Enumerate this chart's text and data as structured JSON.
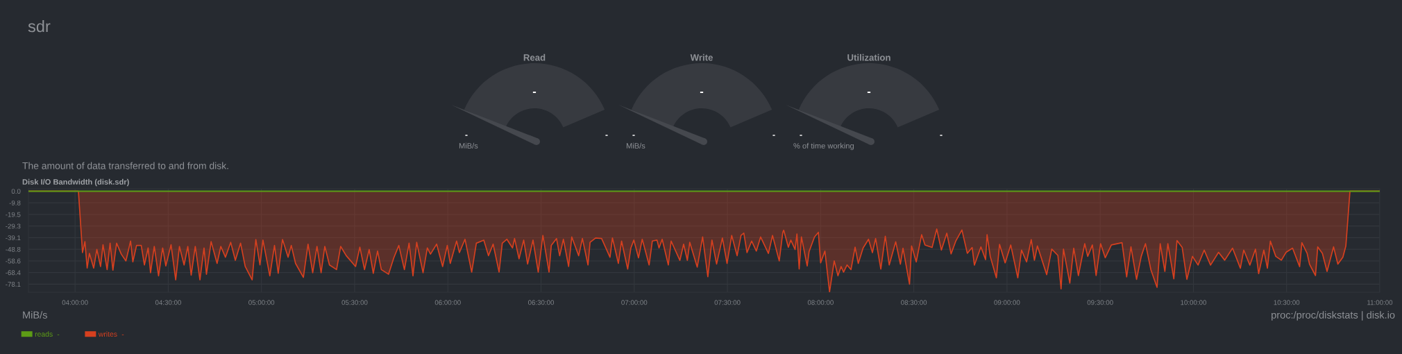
{
  "chart_data": [
    {
      "type": "other",
      "title": "sdr",
      "categories": [
        "Read",
        "Write",
        "Utilization"
      ],
      "value_labels": [
        "-",
        "-",
        "-"
      ],
      "annotations": [
        "-",
        "-",
        "MiB/s",
        "-",
        "-",
        "MiB/s",
        "-",
        "-",
        "% of time working"
      ]
    },
    {
      "type": "area",
      "title": "Disk I/O Bandwidth (disk.sdr)",
      "subtitle": "The amount of data transferred to and from disk.",
      "annotations": [
        "MiB/s",
        "proc:/proc/diskstats | disk.io",
        "-",
        "-"
      ],
      "xlim": [
        3.75,
        11.0
      ],
      "xticks": [
        {
          "value": 4,
          "label": "04:00:00"
        },
        {
          "value": 4.5,
          "label": "04:30:00"
        },
        {
          "value": 5,
          "label": "05:00:00"
        },
        {
          "value": 5.5,
          "label": "05:30:00"
        },
        {
          "value": 6,
          "label": "06:00:00"
        },
        {
          "value": 6.5,
          "label": "06:30:00"
        },
        {
          "value": 7,
          "label": "07:00:00"
        },
        {
          "value": 7.5,
          "label": "07:30:00"
        },
        {
          "value": 8,
          "label": "08:00:00"
        },
        {
          "value": 8.5,
          "label": "08:30:00"
        },
        {
          "value": 9,
          "label": "09:00:00"
        },
        {
          "value": 9.5,
          "label": "09:30:00"
        },
        {
          "value": 10,
          "label": "10:00:00"
        },
        {
          "value": 10.5,
          "label": "10:30:00"
        },
        {
          "value": 11,
          "label": "11:00:00"
        }
      ],
      "ylim": [
        -84.9,
        2.0
      ],
      "yticks": [
        {
          "value": 0,
          "label": "0.0"
        },
        {
          "value": -9.765,
          "label": "-9.8"
        },
        {
          "value": -19.53,
          "label": "-19.5"
        },
        -29.3,
        {
          "value": -39.06,
          "label": "-39.1"
        },
        {
          "value": -48.83,
          "label": "-48.8"
        },
        {
          "value": -58.59,
          "label": "-58.6"
        },
        {
          "value": -68.36,
          "label": "-68.4"
        },
        {
          "value": -78.12,
          "label": "-78.1"
        }
      ],
      "grid": true,
      "legend": "bottom left",
      "series": [
        {
          "name": "reads",
          "type": "line",
          "color": "#5d9c16",
          "x": [
            3.75,
            11.0
          ],
          "values": [
            0,
            0
          ]
        },
        {
          "name": "writes",
          "type": "area",
          "color": "#d6401f",
          "x": [
            3.75,
            4.018,
            4.04,
            4.053,
            4.065,
            4.077,
            4.1,
            4.117,
            4.137,
            4.15,
            4.172,
            4.188,
            4.203,
            4.223,
            4.248,
            4.273,
            4.298,
            4.31,
            4.33,
            4.355,
            4.372,
            4.392,
            4.405,
            4.425,
            4.448,
            4.47,
            4.487,
            4.515,
            4.54,
            4.56,
            4.585,
            4.605,
            4.623,
            4.645,
            4.67,
            4.692,
            4.705,
            4.73,
            4.762,
            4.782,
            4.807,
            4.835,
            4.86,
            4.888,
            4.913,
            4.95,
            4.97,
            4.992,
            5.008,
            5.045,
            5.07,
            5.09,
            5.113,
            5.143,
            5.16,
            5.183,
            5.225,
            5.25,
            5.275,
            5.298,
            5.32,
            5.34,
            5.365,
            5.403,
            5.425,
            5.455,
            5.505,
            5.528,
            5.553,
            5.578,
            5.6,
            5.623,
            5.643,
            5.682,
            5.71,
            5.737,
            5.767,
            5.792,
            5.813,
            5.833,
            5.867,
            5.89,
            5.907,
            5.94,
            5.972,
            5.997,
            6.013,
            6.047,
            6.062,
            6.092,
            6.128,
            6.153,
            6.193,
            6.218,
            6.243,
            6.275,
            6.292,
            6.317,
            6.347,
            6.358,
            6.382,
            6.407,
            6.428,
            6.457,
            6.485,
            6.51,
            6.543,
            6.555,
            6.583,
            6.6,
            6.62,
            6.648,
            6.665,
            6.702,
            6.722,
            6.752,
            6.763,
            6.793,
            6.825,
            6.87,
            6.883,
            6.915,
            6.932,
            6.965,
            6.982,
            6.998,
            7.023,
            7.043,
            7.08,
            7.097,
            7.122,
            7.133,
            7.15,
            7.183,
            7.198,
            7.245,
            7.265,
            7.285,
            7.298,
            7.338,
            7.367,
            7.395,
            7.417,
            7.442,
            7.473,
            7.498,
            7.523,
            7.552,
            7.573,
            7.588,
            7.605,
            7.63,
            7.655,
            7.678,
            7.72,
            7.742,
            7.778,
            7.797,
            7.802,
            7.827,
            7.84,
            7.863,
            7.873,
            7.885,
            7.897,
            7.928,
            7.938,
            7.967,
            7.988,
            8.0,
            8.023,
            8.048,
            8.073,
            8.093,
            8.11,
            8.123,
            8.142,
            8.163,
            8.185,
            8.202,
            8.228,
            8.257,
            8.278,
            8.295,
            8.323,
            8.347,
            8.368,
            8.403,
            8.428,
            8.442,
            8.477,
            8.488,
            8.513,
            8.542,
            8.56,
            8.598,
            8.623,
            8.648,
            8.677,
            8.7,
            8.725,
            8.758,
            8.787,
            8.813,
            8.825,
            8.86,
            8.885,
            8.893,
            8.91,
            8.943,
            8.96,
            8.99,
            9.02,
            9.058,
            9.078,
            9.105,
            9.13,
            9.147,
            9.163,
            9.213,
            9.24,
            9.273,
            9.29,
            9.303,
            9.337,
            9.358,
            9.383,
            9.417,
            9.433,
            9.458,
            9.478,
            9.502,
            9.527,
            9.56,
            9.617,
            9.642,
            9.665,
            9.695,
            9.72,
            9.743,
            9.772,
            9.805,
            9.822,
            9.847,
            9.863,
            9.895,
            9.912,
            9.94,
            9.965,
            9.995,
            10.025,
            10.058,
            10.092,
            10.135,
            10.168,
            10.21,
            10.252,
            10.27,
            10.303,
            10.333,
            10.35,
            10.378,
            10.397,
            10.413,
            10.442,
            10.472,
            10.497,
            10.532,
            10.57,
            10.582,
            10.61,
            10.623,
            10.655,
            10.667,
            10.692,
            10.717,
            10.752,
            10.775,
            10.802,
            10.818,
            10.84,
            11.0
          ],
          "values": [
            0,
            0,
            -51.6,
            -42.4,
            -64.6,
            -52.3,
            -64.6,
            -49,
            -63.3,
            -45,
            -65.9,
            -43.7,
            -66.4,
            -43.7,
            -52.9,
            -58.6,
            -41.9,
            -59.4,
            -45.6,
            -45.6,
            -62,
            -47.7,
            -68.5,
            -46.4,
            -71.1,
            -47.7,
            -62.8,
            -45,
            -74.5,
            -46.4,
            -62,
            -46.4,
            -70.6,
            -46.4,
            -74.5,
            -47.7,
            -69.8,
            -42.4,
            -60.7,
            -46.4,
            -55.5,
            -43,
            -58.1,
            -43.7,
            -63.3,
            -74.5,
            -40.6,
            -62,
            -41.1,
            -71.1,
            -45.6,
            -69,
            -40.6,
            -55.5,
            -45.6,
            -60.7,
            -72.4,
            -44.5,
            -68.5,
            -46.4,
            -68.5,
            -46.4,
            -62,
            -65.9,
            -46.4,
            -54.2,
            -63.3,
            -47.1,
            -65.9,
            -49,
            -69,
            -50.3,
            -65.9,
            -69.8,
            -56,
            -45.6,
            -65.9,
            -43.7,
            -71.1,
            -43,
            -68.5,
            -47.7,
            -52.9,
            -44.5,
            -63.3,
            -45.6,
            -60.7,
            -41.9,
            -51.6,
            -40.4,
            -68,
            -43.7,
            -41.1,
            -54.2,
            -44.5,
            -68,
            -43.7,
            -40.4,
            -47.7,
            -39.8,
            -56.8,
            -41.1,
            -61.2,
            -41.1,
            -68,
            -37.2,
            -68,
            -45.6,
            -39.8,
            -54.2,
            -40.4,
            -63.3,
            -38.5,
            -54.2,
            -39.8,
            -62,
            -43,
            -39.3,
            -39.8,
            -55.5,
            -39.3,
            -60.7,
            -41.9,
            -65.4,
            -47.7,
            -41.1,
            -56,
            -40.4,
            -62,
            -41.9,
            -41.1,
            -47.7,
            -40.4,
            -62,
            -41.9,
            -58.1,
            -44.5,
            -58.1,
            -43,
            -63.8,
            -38.5,
            -71.9,
            -41.1,
            -61.2,
            -39.3,
            -60.7,
            -37.2,
            -54.2,
            -37.2,
            -35.2,
            -51.6,
            -41.9,
            -50.3,
            -38.5,
            -52.3,
            -37.2,
            -58.6,
            -34.6,
            -32.8,
            -47.1,
            -41.1,
            -49,
            -35.9,
            -65.4,
            -38.5,
            -62.8,
            -50.8,
            -38.5,
            -34.6,
            -60.2,
            -50.3,
            -84.6,
            -58.6,
            -71.1,
            -63.3,
            -68,
            -62,
            -65.9,
            -47.1,
            -60.7,
            -47.7,
            -40.4,
            -51.6,
            -39.8,
            -65.4,
            -37.8,
            -62,
            -42.5,
            -61.3,
            -47.9,
            -78.1,
            -46,
            -59.4,
            -36.6,
            -45.2,
            -47.3,
            -31.8,
            -49.5,
            -35.3,
            -52.7,
            -42,
            -32.6,
            -52.2,
            -47.3,
            -62.1,
            -46.8,
            -57.5,
            -36.6,
            -54.8,
            -72.8,
            -44.7,
            -60.2,
            -45.2,
            -72.8,
            -49.5,
            -59.4,
            -40.7,
            -58,
            -46,
            -70.1,
            -48.7,
            -54,
            -82.1,
            -48.7,
            -77.3,
            -47.9,
            -70.9,
            -44.1,
            -54.8,
            -45.2,
            -70.9,
            -44.1,
            -55.9,
            -45.2,
            -43.3,
            -72,
            -46.8,
            -74.1,
            -54.8,
            -44.1,
            -66.1,
            -80.8,
            -44.1,
            -67.4,
            -44.1,
            -73.6,
            -41.5,
            -47.3,
            -74.1,
            -54.8,
            -62.1,
            -49.5,
            -62.1,
            -51.4,
            -58,
            -47.9,
            -64.7,
            -49.5,
            -62.1,
            -48.7,
            -69.3,
            -49.5,
            -64.7,
            -42,
            -54.8,
            -58,
            -51.4,
            -47.9,
            -63.4,
            -43.3,
            -52.2,
            -61.3,
            -70.9,
            -46.8,
            -52.2,
            -67.4,
            -46.8,
            -61.3,
            -55.4,
            -46,
            0,
            0
          ]
        }
      ]
    }
  ]
}
